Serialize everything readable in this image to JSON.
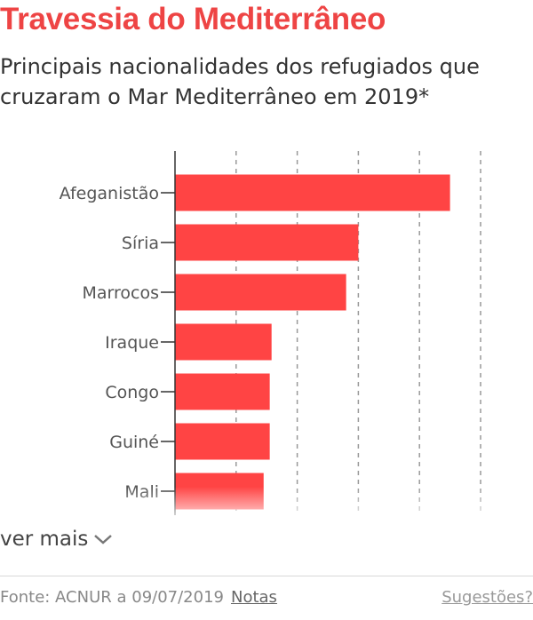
{
  "header": {
    "title": "Travessia do Mediterrâneo",
    "subtitle": "Principais nacionalidades dos refugiados que cruzaram o Mar Mediterrâneo em 2019*"
  },
  "chart_data": {
    "type": "bar",
    "orientation": "horizontal",
    "categories": [
      "Afeganistão",
      "Síria",
      "Marrocos",
      "Iraque",
      "Congo",
      "Guiné",
      "Mali"
    ],
    "values": [
      4500,
      3000,
      2800,
      1580,
      1550,
      1550,
      1450
    ],
    "xlim": [
      0,
      5000
    ],
    "grid": true,
    "bar_color": "#ff4444"
  },
  "controls": {
    "see_more_label": "ver mais"
  },
  "footer": {
    "source": "Fonte: ACNUR a 09/07/2019",
    "notes_label": "Notas",
    "suggestions_label": "Sugestões?"
  }
}
